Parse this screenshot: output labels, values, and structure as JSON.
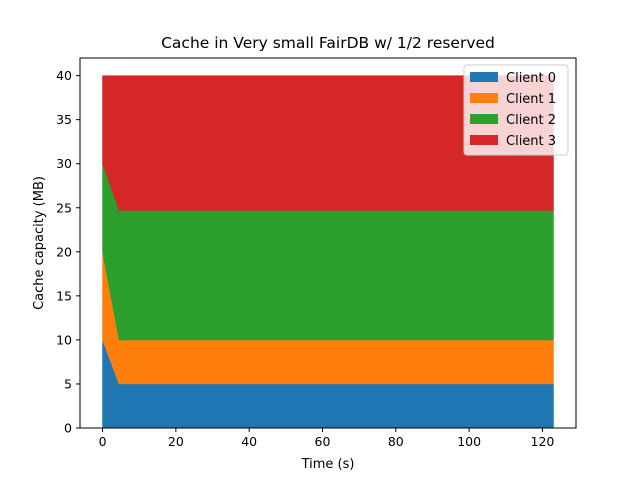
{
  "chart_data": {
    "type": "area",
    "title": "Cache in Very small FairDB w/ 1/2 reserved",
    "xlabel": "Time (s)",
    "ylabel": "Cache capacity (MB)",
    "xlim": [
      -6.15,
      129.15
    ],
    "ylim": [
      0,
      42
    ],
    "x_ticks": [
      0,
      20,
      40,
      60,
      80,
      100,
      120
    ],
    "y_ticks": [
      0,
      5,
      10,
      15,
      20,
      25,
      30,
      35,
      40
    ],
    "grid": false,
    "legend_position": "top-right",
    "stacked": true,
    "x": [
      0,
      4.5,
      123
    ],
    "series": [
      {
        "name": "Client 0",
        "color": "#1f77b4",
        "values": [
          10,
          5,
          5
        ]
      },
      {
        "name": "Client 1",
        "color": "#ff7f0e",
        "values": [
          10,
          5,
          5
        ]
      },
      {
        "name": "Client 2",
        "color": "#2ca02c",
        "values": [
          10,
          14.7,
          14.7
        ]
      },
      {
        "name": "Client 3",
        "color": "#d62728",
        "values": [
          10,
          15.3,
          15.3
        ]
      }
    ]
  }
}
